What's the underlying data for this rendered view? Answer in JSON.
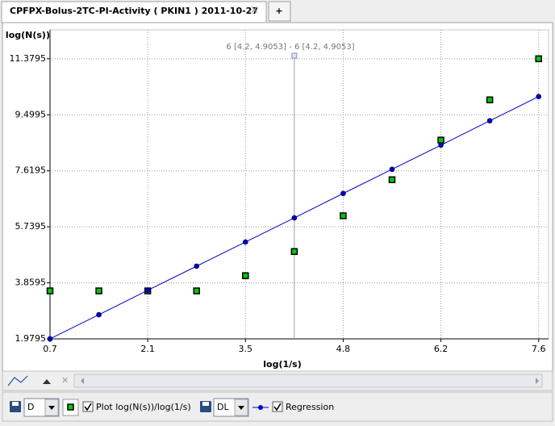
{
  "tab": {
    "title": "CPFPX-Bolus-2TC-PI-Activity ( PKIN1 ) 2011-10-27",
    "add": "+"
  },
  "chart_data": {
    "type": "scatter",
    "y_label": "log(N(s))",
    "x_label": "log(1/s)",
    "annotation": "6 [4.2, 4.9053] - 6 [4.2, 4.9053]",
    "xlim": [
      0.7,
      7.74
    ],
    "ylim": [
      1.9795,
      12.35
    ],
    "xticks": [
      {
        "value": 0.7,
        "label": "0.7"
      },
      {
        "value": 2.08,
        "label": "2.1"
      },
      {
        "value": 3.46,
        "label": "3.5"
      },
      {
        "value": 4.84,
        "label": "4.8"
      },
      {
        "value": 6.22,
        "label": "6.2"
      },
      {
        "value": 7.6,
        "label": "7.6"
      }
    ],
    "yticks": [
      1.9795,
      3.8595,
      5.7395,
      7.6195,
      9.4995,
      11.3795
    ],
    "grid": true,
    "series": [
      {
        "name": "Plot log(N(s))/log(1/s)",
        "type": "scatter",
        "color": "#00c800",
        "selector": "D",
        "x": [
          0.7,
          1.39,
          2.08,
          2.77,
          3.46,
          4.15,
          4.84,
          5.53,
          6.22,
          6.91,
          7.6
        ],
        "values": [
          3.59,
          3.59,
          3.59,
          3.59,
          4.1,
          4.91,
          6.11,
          7.32,
          8.65,
          10.0,
          11.38
        ]
      },
      {
        "name": "Regression",
        "type": "line",
        "color": "#0000c8",
        "selector": "DL",
        "x": [
          0.7,
          1.39,
          2.08,
          2.77,
          3.46,
          4.15,
          4.84,
          5.53,
          6.22,
          6.91,
          7.6
        ],
        "values": [
          1.98,
          2.79,
          3.61,
          4.42,
          5.23,
          6.04,
          6.86,
          7.67,
          8.48,
          9.3,
          10.11
        ]
      }
    ]
  }
}
